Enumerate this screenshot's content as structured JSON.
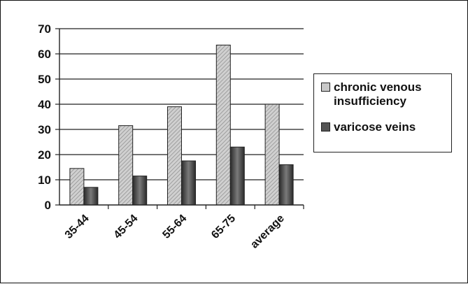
{
  "chart_data": {
    "type": "bar",
    "categories": [
      "35-44",
      "45-54",
      "55-64",
      "65-75",
      "average"
    ],
    "series": [
      {
        "name": "chronic venous insufficiency",
        "values": [
          14.5,
          31.5,
          39,
          63.5,
          40
        ]
      },
      {
        "name": "varicose veins",
        "values": [
          7,
          11.5,
          17.5,
          23,
          16
        ]
      }
    ],
    "title": "",
    "xlabel": "",
    "ylabel": "",
    "ylim": [
      0,
      70
    ],
    "yticks": [
      "0",
      "10",
      "20",
      "30",
      "40",
      "50",
      "60",
      "70"
    ],
    "grid": true,
    "legend_position": "right",
    "colors": {
      "series_1": "#c8c8c8",
      "series_2": "#555555"
    }
  }
}
